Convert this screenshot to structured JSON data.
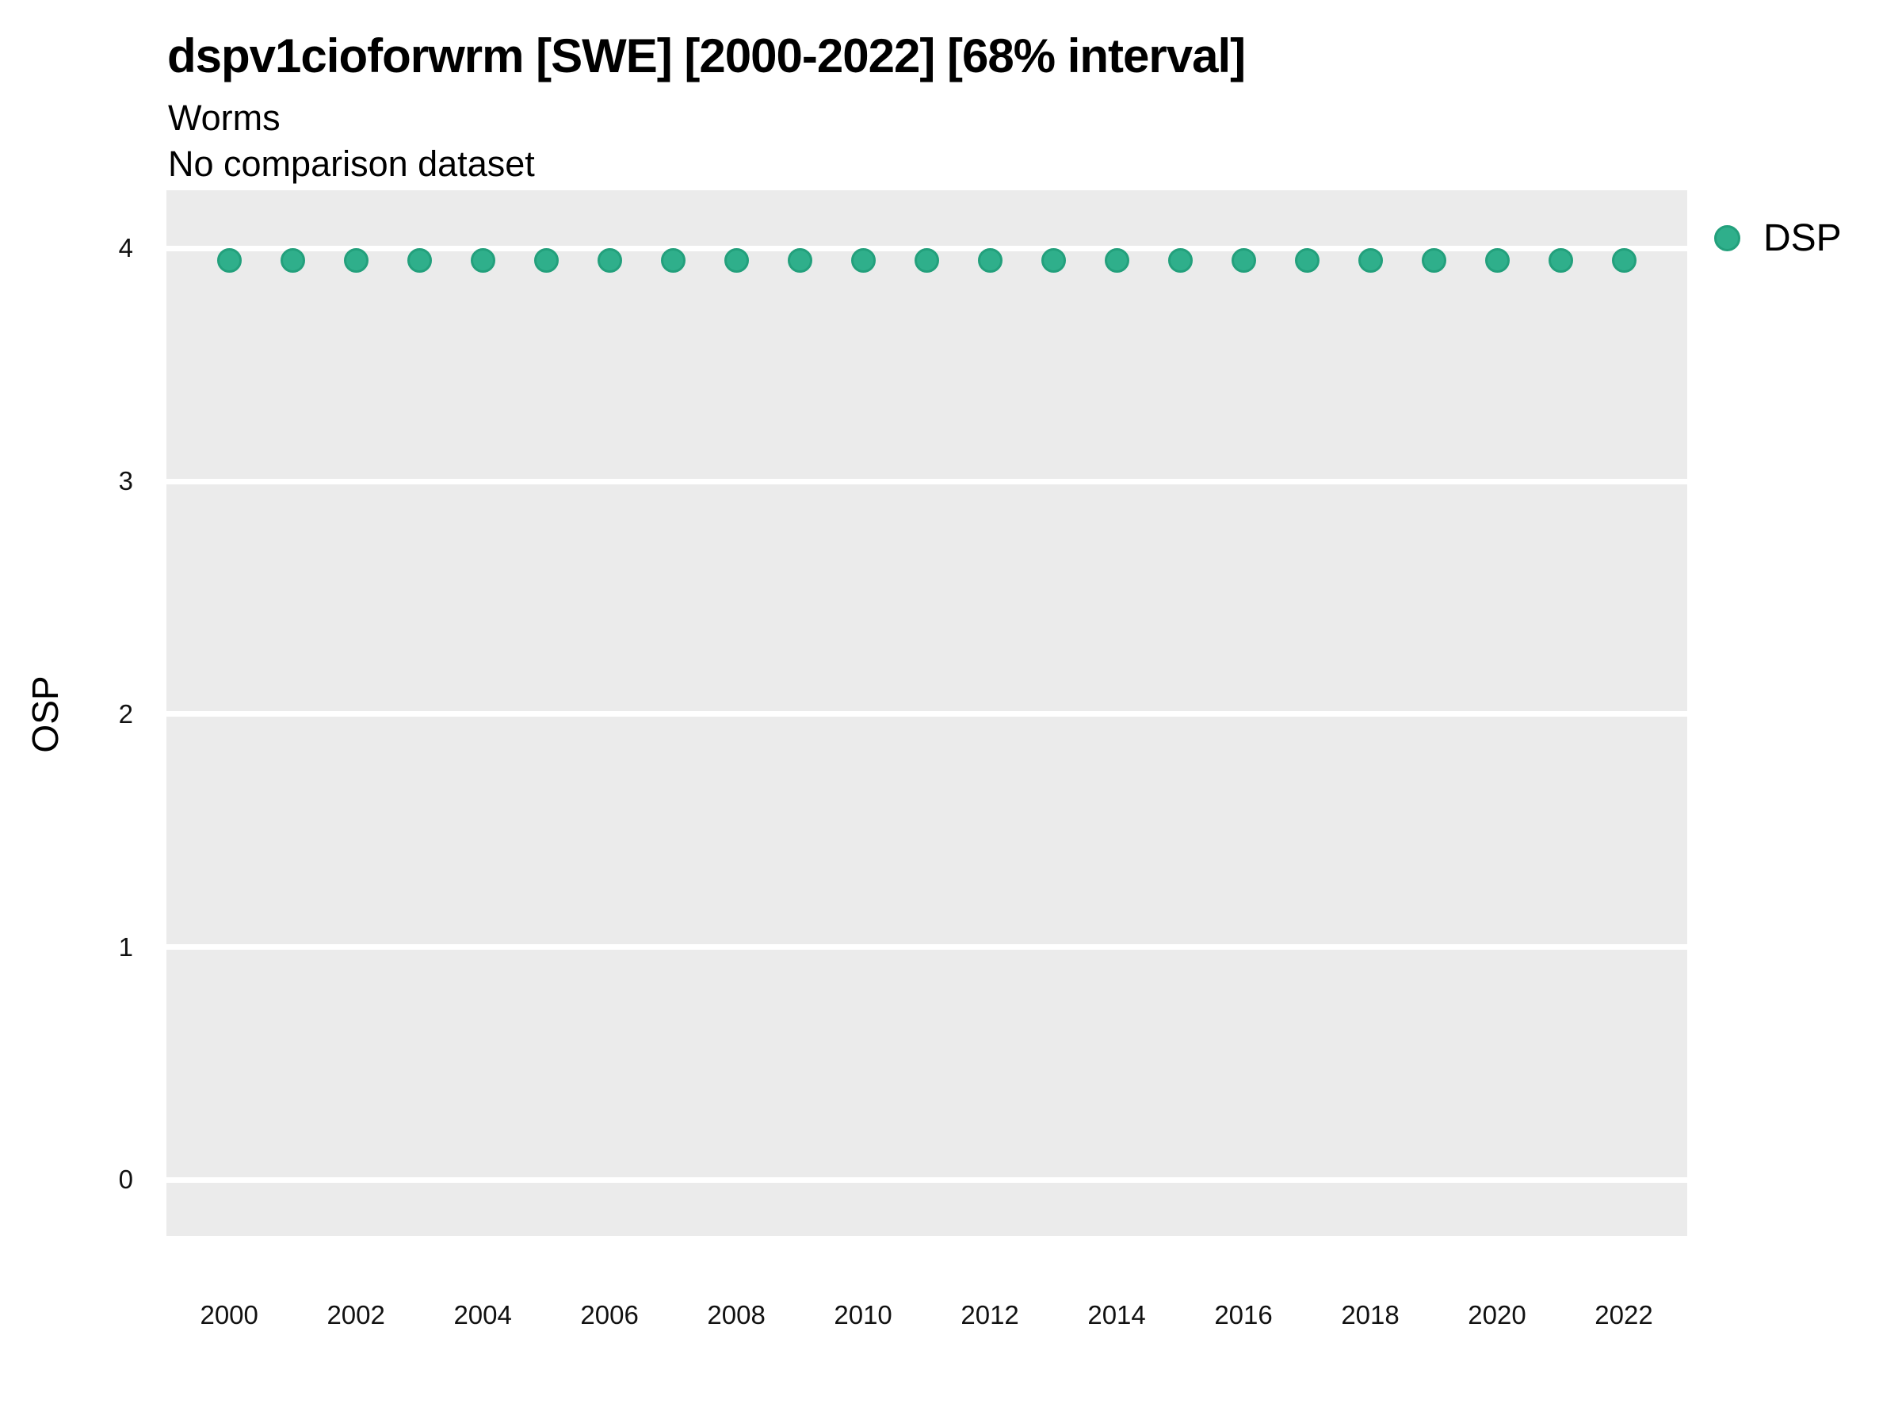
{
  "header": {
    "title": "dspv1cioforwrm [SWE] [2000-2022] [68% interval]",
    "subtitle": "Worms",
    "note": "No comparison dataset"
  },
  "colors": {
    "panel_bg": "#EBEBEB",
    "gridline": "#FFFFFF",
    "dot_fill": "#2FAF8B",
    "dot_stroke": "#23A07C",
    "axis_text": "#111111",
    "title_text": "#000000"
  },
  "chart_data": {
    "type": "scatter",
    "title": "dspv1cioforwrm [SWE] [2000-2022] [68% interval]",
    "subtitle": "Worms",
    "note": "No comparison dataset",
    "xlabel": "",
    "ylabel": "OSP",
    "xlim": [
      1999.01,
      2023.0
    ],
    "ylim": [
      -0.24,
      4.25
    ],
    "x_ticks": [
      2000,
      2002,
      2004,
      2006,
      2008,
      2010,
      2012,
      2014,
      2016,
      2018,
      2020,
      2022
    ],
    "y_ticks": [
      0,
      1,
      2,
      3,
      4
    ],
    "grid": "horizontal-major-only",
    "legend_position": "right-top",
    "series": [
      {
        "name": "DSP",
        "x": [
          2000,
          2001,
          2002,
          2003,
          2004,
          2005,
          2006,
          2007,
          2008,
          2009,
          2010,
          2011,
          2012,
          2013,
          2014,
          2015,
          2016,
          2017,
          2018,
          2019,
          2020,
          2021,
          2022
        ],
        "y": [
          3.95,
          3.95,
          3.95,
          3.95,
          3.95,
          3.95,
          3.95,
          3.95,
          3.95,
          3.95,
          3.95,
          3.95,
          3.95,
          3.95,
          3.95,
          3.95,
          3.95,
          3.95,
          3.95,
          3.95,
          3.95,
          3.95,
          3.95
        ]
      }
    ]
  }
}
